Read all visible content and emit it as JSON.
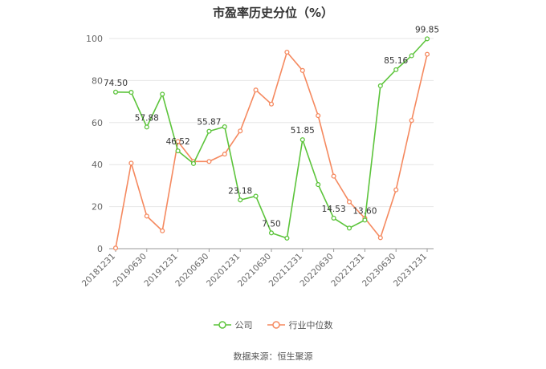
{
  "chart_data": {
    "type": "line",
    "title": "市盈率历史分位（%）",
    "x": [
      "20181231",
      "20190331",
      "20190630",
      "20190930",
      "20191231",
      "20200331",
      "20200630",
      "20200930",
      "20201231",
      "20210331",
      "20210630",
      "20210930",
      "20211231",
      "20220331",
      "20220630",
      "20220930",
      "20221231",
      "20230331",
      "20230630",
      "20230930",
      "20231231"
    ],
    "x_tick_labels": [
      "20181231",
      "20190630",
      "20191231",
      "20200630",
      "20201231",
      "20210630",
      "20211231",
      "20220630",
      "20221231",
      "20230630",
      "20231231"
    ],
    "y_ticks": [
      0,
      20,
      40,
      60,
      80,
      100
    ],
    "ylim": [
      0,
      100
    ],
    "grid": true,
    "legend_position": "bottom",
    "series": [
      {
        "name": "公司",
        "color": "#5cc43b",
        "values": [
          74.5,
          74.4,
          57.88,
          73.5,
          46.52,
          40.5,
          55.87,
          58.0,
          23.18,
          25.0,
          7.5,
          5.0,
          51.85,
          30.5,
          14.53,
          9.8,
          13.6,
          77.5,
          85.16,
          91.8,
          99.85
        ],
        "labels": {
          "0": "74.50",
          "2": "57.88",
          "4": "46.52",
          "6": "55.87",
          "8": "23.18",
          "10": "7.50",
          "12": "51.85",
          "14": "14.53",
          "16": "13.60",
          "18": "85.16",
          "20": "99.85"
        }
      },
      {
        "name": "行业中位数",
        "color": "#f5895f",
        "values": [
          0.3,
          40.7,
          15.5,
          8.5,
          51.0,
          41.5,
          41.5,
          45.0,
          56.0,
          75.5,
          68.8,
          93.5,
          84.8,
          63.3,
          34.5,
          22.3,
          14.5,
          5.2,
          28.0,
          61.0,
          92.5
        ]
      }
    ]
  },
  "source_text": "数据来源：恒生聚源"
}
